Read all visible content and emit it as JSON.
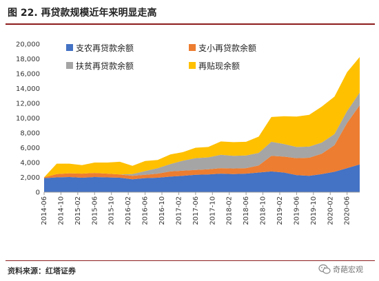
{
  "figure": {
    "title": "图 22. 再贷款规模近年来明显走高",
    "source": "资料来源：红塔证券",
    "watermark": "奇葩宏观"
  },
  "colors": {
    "header_rule": "#8c1b1b",
    "agri": "#4472c4",
    "small": "#ed7d31",
    "poverty": "#a5a5a5",
    "rediscount": "#ffc000"
  },
  "chart_data": {
    "type": "area",
    "stacked": true,
    "title": "",
    "xlabel": "",
    "ylabel": "",
    "ylim": [
      0,
      20000
    ],
    "yticks": [
      0,
      2000,
      4000,
      6000,
      8000,
      10000,
      12000,
      14000,
      16000,
      18000,
      20000
    ],
    "ytick_labels": [
      "0",
      "2,000",
      "4,000",
      "6,000",
      "8,000",
      "10,000",
      "12,000",
      "14,000",
      "16,000",
      "18,000",
      "20,000"
    ],
    "xtick_labels": [
      "2014-06",
      "2014-10",
      "2015-02",
      "2015-06",
      "2015-10",
      "2016-02",
      "2016-06",
      "2016-10",
      "2017-02",
      "2017-06",
      "2017-10",
      "2018-02",
      "2018-06",
      "2018-10",
      "2019-02",
      "2019-06",
      "2019-10",
      "2020-02",
      "2020-06"
    ],
    "x_start": "2014-06",
    "x_end": "2020-09",
    "grid": false,
    "legend": "top-left",
    "dates": [
      "2014-06",
      "2014-09",
      "2014-12",
      "2015-03",
      "2015-06",
      "2015-09",
      "2015-12",
      "2016-03",
      "2016-06",
      "2016-09",
      "2016-12",
      "2017-03",
      "2017-06",
      "2017-09",
      "2017-12",
      "2018-03",
      "2018-06",
      "2018-09",
      "2018-12",
      "2019-03",
      "2019-06",
      "2019-09",
      "2019-12",
      "2020-03",
      "2020-06",
      "2020-09"
    ],
    "series": [
      {
        "name": "支农再贷款余额",
        "color": "#4472c4",
        "values": [
          1900,
          2000,
          2050,
          1950,
          2050,
          2000,
          1950,
          1750,
          1900,
          1950,
          2100,
          2200,
          2350,
          2400,
          2500,
          2450,
          2500,
          2650,
          2800,
          2650,
          2300,
          2200,
          2450,
          2750,
          3250,
          3750
        ]
      },
      {
        "name": "支小再贷款余额",
        "color": "#ed7d31",
        "values": [
          100,
          450,
          500,
          550,
          550,
          500,
          450,
          450,
          450,
          550,
          700,
          700,
          650,
          700,
          750,
          750,
          750,
          950,
          2100,
          2150,
          2300,
          2450,
          2750,
          3600,
          6100,
          8000
        ]
      },
      {
        "name": "扶贫再贷款余额",
        "color": "#a5a5a5",
        "values": [
          0,
          0,
          0,
          0,
          0,
          0,
          0,
          250,
          500,
          750,
          1000,
          1350,
          1600,
          1600,
          1800,
          1700,
          1700,
          1700,
          1900,
          1700,
          1500,
          1500,
          1500,
          1500,
          1600,
          1700
        ]
      },
      {
        "name": "再贴现余额",
        "color": "#ffc000",
        "values": [
          0,
          1400,
          1300,
          1150,
          1400,
          1500,
          1700,
          1100,
          1350,
          1100,
          1300,
          1150,
          1400,
          1400,
          1800,
          1850,
          1850,
          2200,
          3350,
          3750,
          4100,
          4300,
          4850,
          5050,
          5250,
          4800
        ]
      }
    ]
  }
}
